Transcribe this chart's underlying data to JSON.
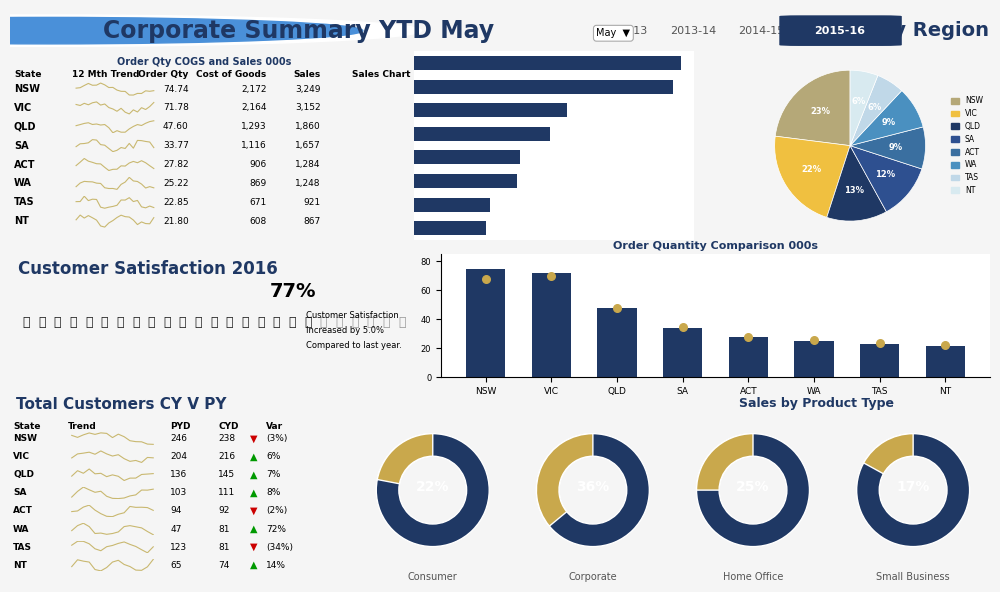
{
  "title": "Corporate Summary YTD May",
  "years": [
    "2012-13",
    "2013-14",
    "2014-15",
    "2015-16"
  ],
  "active_year": "2015-16",
  "top_section_bg": "#f0f0f0",
  "mid_section_bg": "#e8e8e8",
  "bot_section_bg": "#ffffff",
  "header_bg": "#e0e0e0",
  "dark_blue": "#1f3864",
  "medium_blue": "#2e5f8a",
  "gold": "#c9a84c",
  "tan": "#b8a878",
  "states": [
    "NSW",
    "VIC",
    "QLD",
    "SA",
    "ACT",
    "WA",
    "TAS",
    "NT"
  ],
  "order_qty": [
    74.74,
    71.78,
    47.6,
    33.77,
    27.82,
    25.22,
    22.85,
    21.8
  ],
  "cost_of_goods": [
    2172,
    2164,
    1293,
    1116,
    906,
    869,
    671,
    608
  ],
  "sales": [
    3249,
    3152,
    1860,
    1657,
    1284,
    1248,
    921,
    867
  ],
  "pie_labels": [
    "NSW",
    "VIC",
    "QLD",
    "SA",
    "ACT",
    "WA",
    "TAS",
    "NT"
  ],
  "pie_values": [
    23,
    22,
    13,
    12,
    9,
    9,
    6,
    6
  ],
  "pie_colors": [
    "#b5a878",
    "#f0c040",
    "#1f3864",
    "#2e5090",
    "#3a6fa0",
    "#4a90c0",
    "#c0d8e8",
    "#d8eaf0"
  ],
  "bar_color": "#1f3864",
  "order_qty_comparison": [
    74.74,
    71.78,
    47.6,
    33.77,
    27.82,
    25.22,
    22.85,
    21.8
  ],
  "dot_color": "#c9a84c",
  "dot_values": [
    68,
    70,
    48,
    35,
    28,
    26,
    24,
    22
  ],
  "customers_pyd": [
    246,
    204,
    136,
    103,
    94,
    47,
    123,
    65
  ],
  "customers_cyd": [
    238,
    216,
    145,
    111,
    92,
    81,
    81,
    74
  ],
  "customers_var": [
    "(3%)",
    "6%",
    "7%",
    "8%",
    "(2%)",
    "72%",
    "(34%)",
    "14%"
  ],
  "var_positive": [
    false,
    true,
    true,
    true,
    false,
    true,
    false,
    true
  ],
  "product_types": [
    "Consumer",
    "Corporate",
    "Home Office",
    "Small Business"
  ],
  "product_pct": [
    22,
    36,
    25,
    17
  ],
  "donut_colors_inner": [
    "#1f3864",
    "#1f3864",
    "#1f3864",
    "#1f3864"
  ],
  "donut_colors_outer": [
    "#c9a84c",
    "#c9a84c",
    "#c9a84c",
    "#c9a84c"
  ],
  "satisfaction_pct": 77,
  "satisfaction_text1": "Customer Satisfaction",
  "satisfaction_text2": "Increased by 5.0%",
  "satisfaction_text3": "Compared to last year.",
  "region_title": "Sales by Region",
  "order_qty_title": "Order Quantity Comparison 000s",
  "product_type_title": "Sales by Product Type",
  "customer_title": "Total Customers CY V PY",
  "csat_title": "Customer Satisfaction 2016"
}
